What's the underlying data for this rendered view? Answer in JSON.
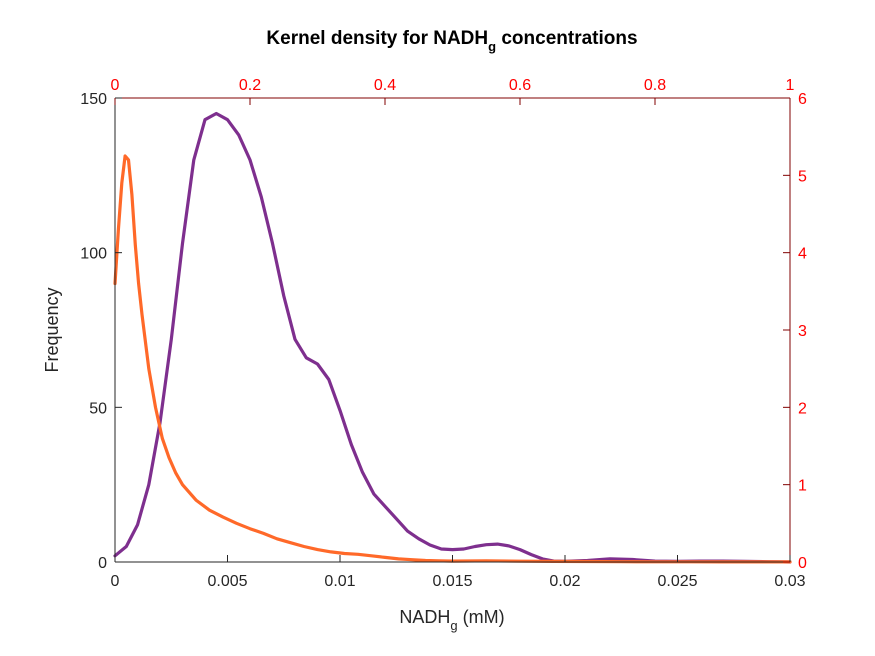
{
  "chart_data": {
    "type": "line",
    "title": {
      "prefix": "Kernel density for NADH",
      "subscript": "g",
      "suffix": " concentrations"
    },
    "xlabel": {
      "prefix": "NADH",
      "subscript": "g",
      "suffix": " (mM)"
    },
    "ylabel": "Frequency",
    "xlim": [
      0,
      0.03
    ],
    "ylim": [
      0,
      150
    ],
    "x_ticks": [
      "0",
      "0.005",
      "0.01",
      "0.015",
      "0.02",
      "0.025",
      "0.03"
    ],
    "y_ticks": [
      "0",
      "50",
      "100",
      "150"
    ],
    "x2lim": [
      0,
      1
    ],
    "y2lim": [
      0,
      6
    ],
    "x2_ticks": [
      "0",
      "0.2",
      "0.4",
      "0.6",
      "0.8",
      "1"
    ],
    "y2_ticks": [
      "0",
      "1",
      "2",
      "3",
      "4",
      "5",
      "6"
    ],
    "grid": false,
    "series": [
      {
        "axes": "primary",
        "color": "#7E2F8E",
        "x": [
          0.0,
          0.0005,
          0.001,
          0.0015,
          0.002,
          0.0025,
          0.003,
          0.0035,
          0.004,
          0.0045,
          0.005,
          0.0055,
          0.006,
          0.0065,
          0.007,
          0.0075,
          0.008,
          0.0085,
          0.009,
          0.0095,
          0.01,
          0.0105,
          0.011,
          0.0115,
          0.012,
          0.0125,
          0.013,
          0.0135,
          0.014,
          0.0145,
          0.015,
          0.0155,
          0.016,
          0.0165,
          0.017,
          0.0175,
          0.018,
          0.0185,
          0.019,
          0.0195,
          0.02,
          0.021,
          0.022,
          0.023,
          0.024,
          0.025,
          0.026,
          0.027,
          0.028,
          0.029,
          0.03
        ],
        "y": [
          2,
          5,
          12,
          25,
          45,
          72,
          103,
          130,
          143,
          145,
          143,
          138,
          130,
          118,
          103,
          86,
          72,
          66,
          64,
          59,
          49,
          38,
          29,
          22,
          18,
          14,
          10,
          7.5,
          5.5,
          4.2,
          4,
          4.2,
          5,
          5.6,
          5.8,
          5.2,
          4,
          2.4,
          1,
          0.3,
          0.2,
          0.5,
          1,
          0.8,
          0.3,
          0.2,
          0.3,
          0.3,
          0.2,
          0.1,
          0
        ]
      },
      {
        "axes": "secondary",
        "color": "#FF6929",
        "x": [
          0.0,
          0.005,
          0.01,
          0.015,
          0.02,
          0.025,
          0.03,
          0.035,
          0.04,
          0.05,
          0.06,
          0.07,
          0.08,
          0.09,
          0.1,
          0.12,
          0.14,
          0.16,
          0.18,
          0.2,
          0.22,
          0.24,
          0.26,
          0.28,
          0.3,
          0.32,
          0.34,
          0.36,
          0.38,
          0.4,
          0.42,
          0.44,
          0.46,
          0.48,
          0.5,
          0.55,
          0.6,
          0.65,
          0.7,
          0.75,
          0.8,
          0.85,
          0.9,
          0.95,
          1.0
        ],
        "y": [
          3.6,
          4.3,
          4.9,
          5.25,
          5.2,
          4.75,
          4.1,
          3.6,
          3.2,
          2.5,
          2.0,
          1.6,
          1.35,
          1.15,
          1.0,
          0.8,
          0.67,
          0.58,
          0.5,
          0.43,
          0.37,
          0.3,
          0.25,
          0.2,
          0.16,
          0.13,
          0.11,
          0.1,
          0.08,
          0.06,
          0.04,
          0.03,
          0.02,
          0.015,
          0.012,
          0.015,
          0.01,
          0.008,
          0.006,
          0.004,
          0.002,
          0.002,
          0.001,
          0.001,
          0.001
        ]
      }
    ]
  }
}
